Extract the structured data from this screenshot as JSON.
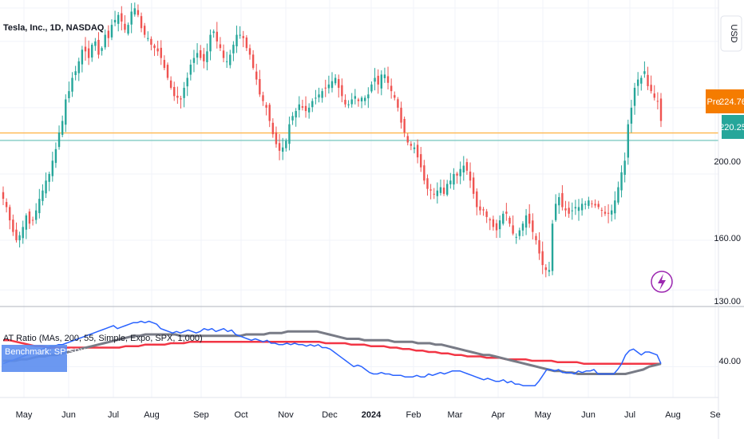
{
  "header": {
    "title": "Tesla, Inc., 1D, NASDAQ",
    "currency": "USD"
  },
  "colors": {
    "up": "#26a69a",
    "down": "#ef5350",
    "pre_badge": "#f57c00",
    "last_badge": "#26a69a",
    "pre_line": "#ffb74d",
    "last_line": "#80cbc4",
    "ratio": "#2962ff",
    "ma_fast": "#787b86",
    "ma_slow": "#f23645",
    "benchmark_badge": "#5b8def",
    "grid": "#f0f3fa",
    "lightning": "#9c27b0"
  },
  "price_axis": {
    "ticks": [
      "200.00",
      "160.00",
      "130.00"
    ],
    "pre_label": "Pre",
    "pre_price": "224.76",
    "last_price": "220.25"
  },
  "indicator": {
    "title": "AT Ratio (MAs, 200, 55, Simple, Expo, SPX, 1,000)",
    "benchmark_label": "Benchmark:  SP:SPX",
    "axis_tick": "40.00"
  },
  "x_axis": {
    "labels": [
      "May",
      "Jun",
      "Jul",
      "Aug",
      "Sep",
      "Oct",
      "Nov",
      "Dec",
      "2024",
      "Feb",
      "Mar",
      "Apr",
      "May",
      "Jun",
      "Jul",
      "Aug",
      "Se"
    ]
  },
  "chart_data": {
    "type": "candlestick",
    "title": "Tesla, Inc., 1D, NASDAQ",
    "ylim": [
      120,
      305
    ],
    "price_levels": {
      "pre": 224.76,
      "last": 220.25
    },
    "close": [
      185,
      180,
      172,
      165,
      160,
      163,
      168,
      175,
      170,
      172,
      178,
      185,
      190,
      196,
      200,
      208,
      215,
      225,
      232,
      245,
      250,
      258,
      262,
      268,
      275,
      274,
      270,
      278,
      280,
      272,
      276,
      284,
      282,
      290,
      293,
      296,
      292,
      287,
      290,
      298,
      300,
      296,
      288,
      284,
      282,
      278,
      276,
      274,
      270,
      264,
      258,
      252,
      247,
      246,
      245,
      252,
      258,
      266,
      270,
      273,
      270,
      268,
      274,
      284,
      286,
      280,
      276,
      270,
      268,
      272,
      278,
      284,
      284,
      282,
      276,
      272,
      264,
      257,
      248,
      244,
      240,
      232,
      224,
      218,
      214,
      216,
      220,
      230,
      235,
      238,
      242,
      240,
      238,
      240,
      244,
      246,
      248,
      250,
      252,
      254,
      256,
      258,
      252,
      247,
      242,
      242,
      245,
      247,
      244,
      246,
      246,
      248,
      254,
      258,
      254,
      260,
      260,
      255,
      250,
      246,
      240,
      231,
      225,
      219,
      217,
      216,
      210,
      204,
      196,
      191,
      190,
      188,
      190,
      192,
      188,
      194,
      196,
      200,
      199,
      203,
      205,
      202,
      196,
      188,
      180,
      178,
      178,
      174,
      172,
      168,
      166,
      172,
      176,
      176,
      170,
      164,
      162,
      166,
      170,
      175,
      170,
      165,
      160,
      152,
      145,
      142,
      142,
      170,
      182,
      186,
      180,
      178,
      176,
      178,
      180,
      180,
      182,
      182,
      184,
      182,
      181,
      180,
      178,
      176,
      176,
      178,
      184,
      192,
      201,
      208,
      230,
      240,
      252,
      257,
      258,
      262,
      253,
      250,
      246,
      244,
      232
    ],
    "series": [
      {
        "name": "AT Ratio",
        "values": [
          42,
          43,
          44,
          45,
          46,
          47,
          48,
          49,
          50,
          51,
          52,
          53,
          54,
          54,
          55,
          55,
          56,
          57,
          58,
          59,
          60,
          61,
          62,
          63,
          64,
          65,
          66,
          67,
          68,
          66,
          67,
          68,
          69,
          70,
          70,
          71,
          70,
          71,
          70,
          69,
          66,
          65,
          64,
          63,
          64,
          63,
          64,
          65,
          64,
          63,
          64,
          66,
          65,
          66,
          64,
          65,
          66,
          64,
          65,
          62,
          61,
          60,
          59,
          58,
          59,
          58,
          57,
          58,
          56,
          56,
          55,
          55,
          56,
          55,
          56,
          55,
          55,
          54,
          55,
          54,
          55,
          53,
          53,
          52,
          50,
          48,
          46,
          44,
          42,
          40,
          41,
          40,
          38,
          36,
          35,
          35,
          36,
          35,
          35,
          34,
          34,
          34,
          33,
          33,
          33,
          34,
          33,
          33,
          35,
          34,
          35,
          36,
          35,
          36,
          37,
          37,
          37,
          36,
          35,
          34,
          33,
          32,
          31,
          32,
          31,
          30,
          30,
          31,
          29,
          30,
          28,
          28,
          27,
          27,
          27,
          27,
          30,
          34,
          38,
          38,
          37,
          38,
          36,
          36,
          36,
          35,
          37,
          36,
          37,
          37,
          38,
          35,
          35,
          35,
          35,
          35,
          38,
          42,
          48,
          51,
          52,
          50,
          48,
          50,
          50,
          49,
          48,
          42
        ]
      },
      {
        "name": "MA 55",
        "values": [
          44,
          44,
          44,
          45,
          45,
          46,
          47,
          47,
          48,
          48,
          49,
          50,
          51,
          52,
          53,
          54,
          55,
          56,
          57,
          58,
          59,
          60,
          61,
          61,
          62,
          62,
          62,
          62,
          62,
          62,
          61,
          61,
          61,
          61,
          61,
          61,
          61,
          61,
          61,
          61,
          61,
          62,
          62,
          62,
          62,
          63,
          63,
          63,
          64,
          64,
          64,
          64,
          64,
          64,
          63,
          62,
          61,
          60,
          59,
          59,
          59,
          58,
          58,
          58,
          58,
          58,
          57,
          57,
          57,
          57,
          56,
          56,
          56,
          55,
          55,
          54,
          53,
          52,
          51,
          50,
          49,
          48,
          48,
          47,
          46,
          45,
          44,
          43,
          42,
          41,
          40,
          39,
          38,
          37,
          37,
          36,
          36,
          35,
          35,
          35,
          35,
          35,
          35,
          35,
          35,
          35,
          36,
          37,
          38,
          40,
          41,
          42
        ]
      },
      {
        "name": "MA 200",
        "values": [
          58,
          58,
          57,
          56,
          55,
          54,
          54,
          53,
          53,
          53,
          53,
          53,
          53,
          53,
          53,
          53,
          53,
          53,
          53,
          54,
          54,
          54,
          55,
          55,
          55,
          55,
          56,
          56,
          56,
          57,
          57,
          57,
          57,
          57,
          57,
          57,
          57,
          57,
          57,
          57,
          57,
          57,
          57,
          57,
          57,
          57,
          57,
          57,
          57,
          57,
          56,
          56,
          56,
          56,
          55,
          55,
          55,
          54,
          54,
          54,
          53,
          53,
          52,
          52,
          51,
          51,
          50,
          50,
          49,
          49,
          48,
          48,
          47,
          47,
          47,
          46,
          46,
          46,
          45,
          45,
          45,
          45,
          44,
          44,
          44,
          44,
          43,
          43,
          43,
          43,
          42,
          42,
          42,
          42,
          42,
          42,
          42,
          42,
          42,
          42,
          42,
          42,
          42
        ]
      }
    ],
    "ratio_ylim": [
      20,
      80
    ],
    "x_labels": [
      "May",
      "Jun",
      "Jul",
      "Aug",
      "Sep",
      "Oct",
      "Nov",
      "Dec",
      "2024",
      "Feb",
      "Mar",
      "Apr",
      "May",
      "Jun",
      "Jul",
      "Aug",
      "Se"
    ],
    "grid": true
  }
}
